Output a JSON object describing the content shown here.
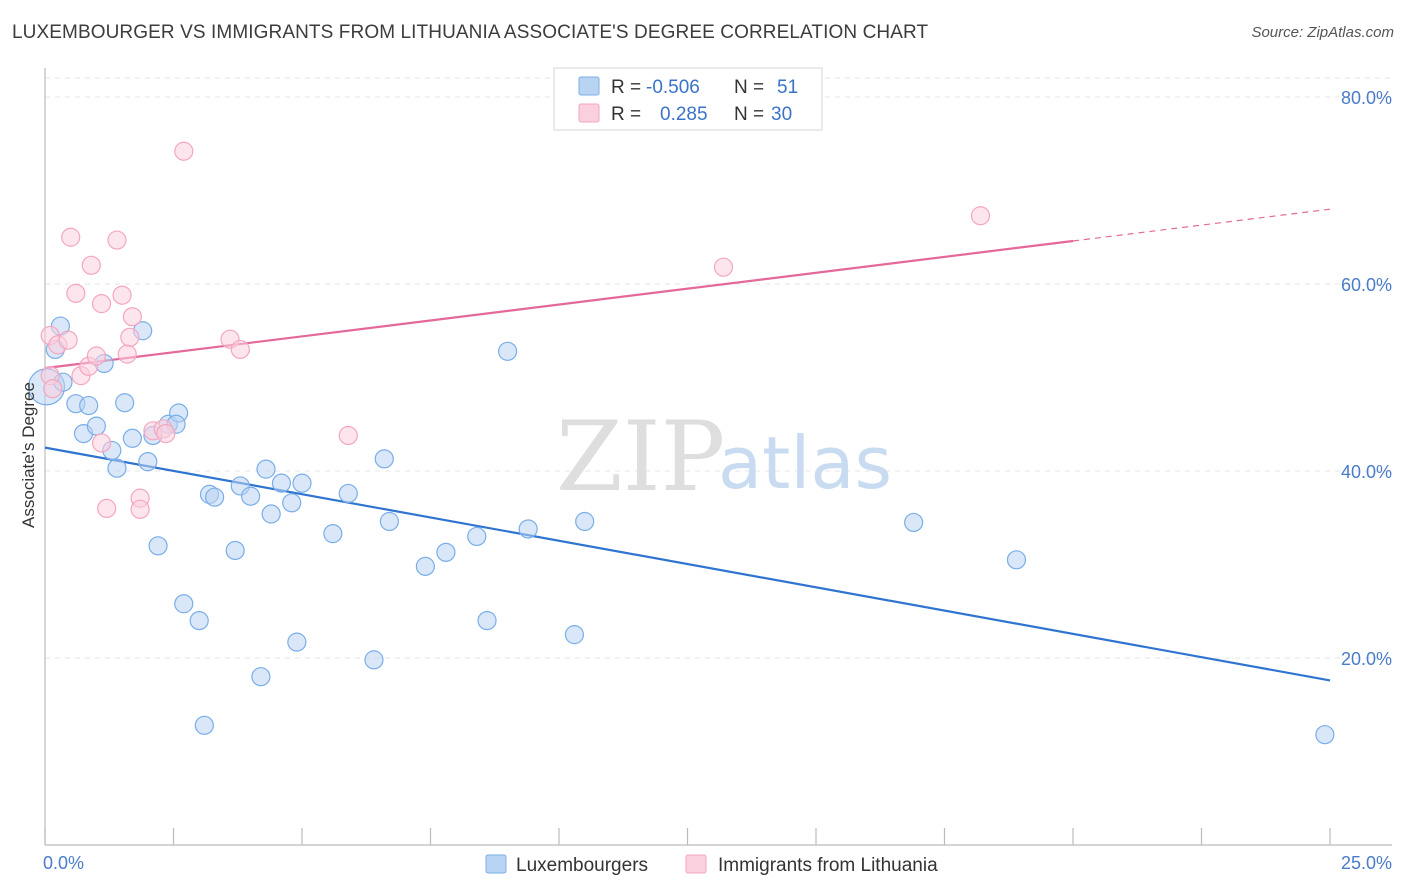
{
  "title": "LUXEMBOURGER VS IMMIGRANTS FROM LITHUANIA ASSOCIATE'S DEGREE CORRELATION CHART",
  "source": "Source: ZipAtlas.com",
  "watermark": {
    "zip": "ZIP",
    "atlas": "atlas"
  },
  "legend": {
    "rows": [
      {
        "r_label": "R =",
        "r_value": "-0.506",
        "n_label": "N =",
        "n_value": "51",
        "color": "#7aaee8"
      },
      {
        "r_label": "R =",
        "r_value": "0.285",
        "n_label": "N =",
        "n_value": "30",
        "color": "#f4a6bf"
      }
    ]
  },
  "bottom_legend": [
    {
      "label": "Luxembourgers",
      "color": "#7aaee8"
    },
    {
      "label": "Immigrants from Lithuania",
      "color": "#f4a6bf"
    }
  ],
  "chart_data": {
    "type": "scatter",
    "title": "LUXEMBOURGER VS IMMIGRANTS FROM LITHUANIA ASSOCIATE'S DEGREE CORRELATION CHART",
    "xlabel": "",
    "ylabel": "Associate's Degree",
    "xlim": [
      0,
      25
    ],
    "ylim": [
      0,
      80
    ],
    "x_tick_labels": [
      "0.0%",
      "25.0%"
    ],
    "y_ticks": [
      20,
      40,
      60,
      80
    ],
    "y_tick_labels": [
      "20.0%",
      "40.0%",
      "60.0%",
      "80.0%"
    ],
    "grid": true,
    "legend_position": "top-center",
    "series": [
      {
        "name": "Luxembourgers",
        "color": "#7aaee8",
        "line_color": "#2f74d0",
        "trend": {
          "x": [
            0,
            25
          ],
          "y": [
            42.5,
            17.6
          ],
          "solid_to": 25
        },
        "points": [
          [
            0.03,
            49.0,
            "big"
          ],
          [
            0.3,
            55.5
          ],
          [
            0.2,
            53.0
          ],
          [
            0.35,
            49.5
          ],
          [
            0.6,
            47.2
          ],
          [
            0.85,
            47.0
          ],
          [
            0.75,
            44.0
          ],
          [
            1.0,
            44.8
          ],
          [
            1.15,
            51.5
          ],
          [
            1.3,
            42.2
          ],
          [
            1.4,
            40.3
          ],
          [
            1.55,
            47.3
          ],
          [
            1.7,
            43.5
          ],
          [
            1.9,
            55.0
          ],
          [
            2.0,
            41.0
          ],
          [
            2.1,
            43.8
          ],
          [
            2.4,
            45.0
          ],
          [
            2.6,
            46.2
          ],
          [
            2.2,
            32.0
          ],
          [
            2.7,
            25.8
          ],
          [
            3.1,
            12.8
          ],
          [
            3.0,
            24.0
          ],
          [
            3.2,
            37.5
          ],
          [
            3.3,
            37.2
          ],
          [
            3.7,
            31.5
          ],
          [
            3.8,
            38.4
          ],
          [
            4.0,
            37.3
          ],
          [
            4.3,
            40.2
          ],
          [
            4.2,
            18.0
          ],
          [
            4.4,
            35.4
          ],
          [
            4.6,
            38.7
          ],
          [
            4.8,
            36.6
          ],
          [
            4.9,
            21.7
          ],
          [
            5.0,
            38.7
          ],
          [
            5.6,
            33.3
          ],
          [
            5.9,
            37.6
          ],
          [
            6.4,
            19.8
          ],
          [
            6.6,
            41.3
          ],
          [
            6.7,
            34.6
          ],
          [
            7.4,
            29.8
          ],
          [
            7.8,
            31.3
          ],
          [
            8.4,
            33.0
          ],
          [
            8.6,
            24.0
          ],
          [
            9.0,
            52.8
          ],
          [
            9.4,
            33.8
          ],
          [
            10.3,
            22.5
          ],
          [
            10.5,
            34.6
          ],
          [
            16.9,
            34.5
          ],
          [
            18.9,
            30.5
          ],
          [
            24.9,
            11.8
          ],
          [
            2.55,
            45.0
          ]
        ]
      },
      {
        "name": "Immigrants from Lithuania",
        "color": "#f4a6bf",
        "line_color": "#e4689a",
        "trend": {
          "x": [
            0,
            25
          ],
          "y": [
            51.0,
            68.0
          ],
          "solid_to": 20
        },
        "points": [
          [
            0.1,
            54.5
          ],
          [
            0.25,
            53.5
          ],
          [
            0.45,
            54.0
          ],
          [
            0.5,
            65.0
          ],
          [
            0.6,
            59.0
          ],
          [
            0.7,
            50.2
          ],
          [
            0.85,
            51.2
          ],
          [
            0.9,
            62.0
          ],
          [
            1.0,
            52.3
          ],
          [
            1.1,
            43.0
          ],
          [
            1.1,
            57.9
          ],
          [
            1.2,
            36.0
          ],
          [
            1.4,
            64.7
          ],
          [
            1.5,
            58.8
          ],
          [
            1.6,
            52.5
          ],
          [
            1.65,
            54.3
          ],
          [
            1.7,
            56.5
          ],
          [
            1.85,
            37.1
          ],
          [
            1.85,
            35.9
          ],
          [
            2.1,
            44.3
          ],
          [
            2.3,
            44.5
          ],
          [
            2.35,
            44.0
          ],
          [
            2.7,
            74.2
          ],
          [
            3.6,
            54.1
          ],
          [
            3.8,
            53.0
          ],
          [
            5.9,
            43.8
          ],
          [
            13.2,
            61.8
          ],
          [
            18.2,
            67.3
          ],
          [
            0.1,
            50.2
          ],
          [
            0.15,
            48.8
          ]
        ]
      }
    ]
  }
}
